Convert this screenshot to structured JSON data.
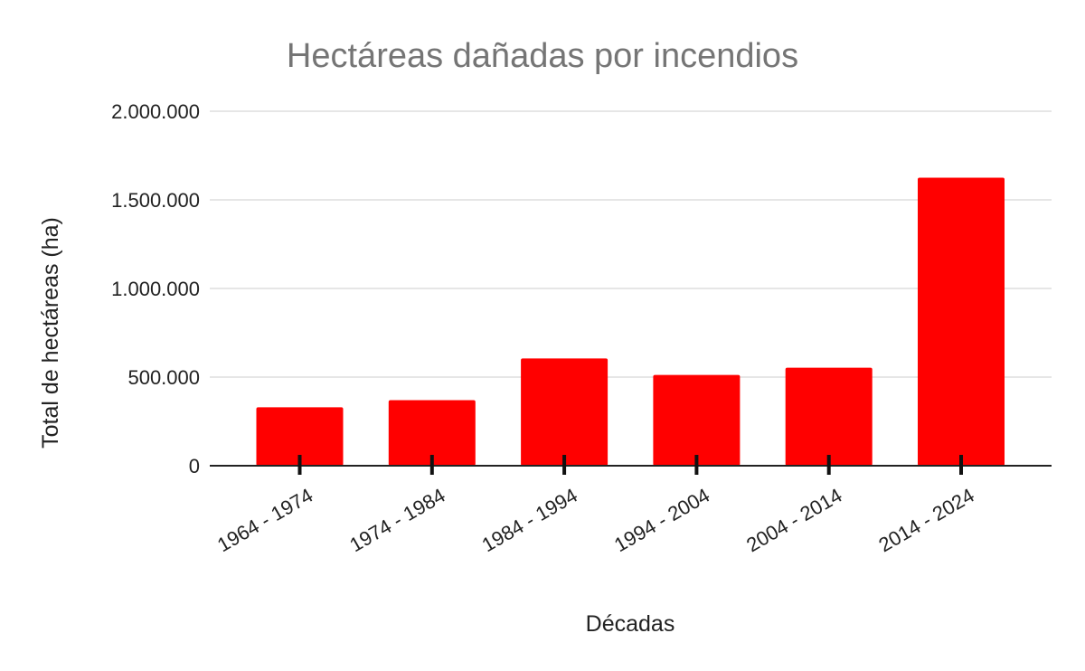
{
  "chart_data": {
    "type": "bar",
    "title": "Hectáreas dañadas por incendios",
    "xlabel": "Décadas",
    "ylabel": "Total de hectáreas (ha)",
    "categories": [
      "1964 - 1974",
      "1974 - 1984",
      "1984 - 1994",
      "1994 - 2004",
      "2004 - 2014",
      "2014 - 2024"
    ],
    "values": [
      330000,
      370000,
      605000,
      512000,
      553000,
      1625000
    ],
    "ylim": [
      0,
      2000000
    ],
    "yticks": [
      0,
      500000,
      1000000,
      1500000,
      2000000
    ],
    "ytick_labels": [
      "0",
      "500.000",
      "1.000.000",
      "1.500.000",
      "2.000.000"
    ],
    "bar_color": "#ff0000",
    "grid": true,
    "legend": "none"
  }
}
